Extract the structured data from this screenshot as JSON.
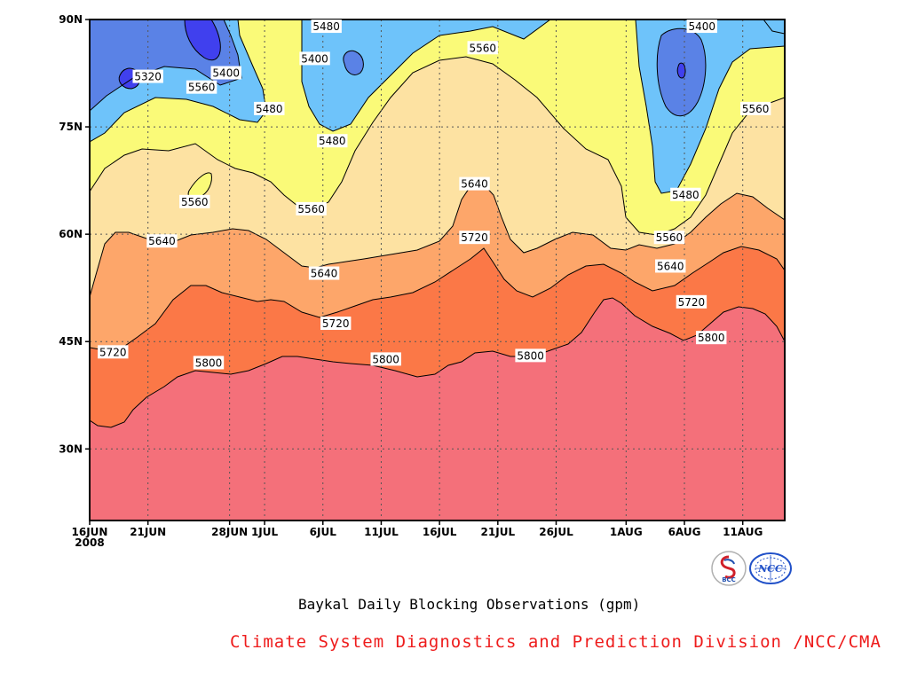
{
  "chart_data": {
    "type": "contour",
    "title": "Baykal Daily Blocking Observations (gpm)",
    "xlabel": "",
    "ylabel": "",
    "x_ticks": [
      "16JUN\n2008",
      "21JUN",
      "28JUN",
      "1JUL",
      "6JUL",
      "11JUL",
      "16JUL",
      "21JUL",
      "26JUL",
      "1AUG",
      "6AUG",
      "11AUG"
    ],
    "y_ticks": [
      "30N",
      "45N",
      "60N",
      "75N",
      "90N"
    ],
    "ylim": [
      20,
      90
    ],
    "grid": true,
    "contour_levels": [
      5320,
      5400,
      5480,
      5560,
      5640,
      5720,
      5800
    ],
    "fill_colors": {
      "below_5320": "#4040ee",
      "5320_5400": "#5a82e6",
      "5400_5480": "#6ec3fa",
      "5480_5560": "#fafa78",
      "5560_5640": "#fde2a2",
      "5640_5720": "#fda66a",
      "5720_5800": "#fb7847",
      "above_5800": "#f4707a"
    },
    "contour_labels": [
      {
        "value": "5480",
        "day": 20.3,
        "lat": 89
      },
      {
        "value": "5320",
        "day": 5.0,
        "lat": 82
      },
      {
        "value": "5400",
        "day": 11.7,
        "lat": 82.5
      },
      {
        "value": "5560",
        "day": 9.6,
        "lat": 80.5
      },
      {
        "value": "5480",
        "day": 15.4,
        "lat": 77.5
      },
      {
        "value": "5400",
        "day": 19.3,
        "lat": 84.5
      },
      {
        "value": "5480",
        "day": 20.8,
        "lat": 73
      },
      {
        "value": "5560",
        "day": 33.7,
        "lat": 86
      },
      {
        "value": "5400",
        "day": 52.5,
        "lat": 89
      },
      {
        "value": "5560",
        "day": 57.1,
        "lat": 77.5
      },
      {
        "value": "5560",
        "day": 9.0,
        "lat": 64.5
      },
      {
        "value": "5560",
        "day": 19.0,
        "lat": 63.5
      },
      {
        "value": "5640",
        "day": 33.0,
        "lat": 67
      },
      {
        "value": "5480",
        "day": 51.1,
        "lat": 65.5
      },
      {
        "value": "5560",
        "day": 49.7,
        "lat": 59.5
      },
      {
        "value": "5640",
        "day": 6.2,
        "lat": 59
      },
      {
        "value": "5720",
        "day": 33.0,
        "lat": 59.5
      },
      {
        "value": "5640",
        "day": 20.1,
        "lat": 54.5
      },
      {
        "value": "5640",
        "day": 49.8,
        "lat": 55.5
      },
      {
        "value": "5720",
        "day": 51.6,
        "lat": 50.5
      },
      {
        "value": "5720",
        "day": 21.1,
        "lat": 47.5
      },
      {
        "value": "5720",
        "day": 2.0,
        "lat": 43.5
      },
      {
        "value": "5800",
        "day": 10.2,
        "lat": 42
      },
      {
        "value": "5800",
        "day": 25.4,
        "lat": 42.5
      },
      {
        "value": "5800",
        "day": 37.8,
        "lat": 43
      },
      {
        "value": "5800",
        "day": 53.3,
        "lat": 45.5
      }
    ]
  },
  "footer": {
    "title": "Baykal Daily Blocking Observations (gpm)",
    "credit": "Climate System Diagnostics and Prediction Division /NCC/CMA",
    "credit_color": "#ee1c1c"
  },
  "logos": [
    {
      "icon": "bcc-logo",
      "text": "BCC"
    },
    {
      "icon": "ncc-logo",
      "text": "NCC"
    }
  ]
}
